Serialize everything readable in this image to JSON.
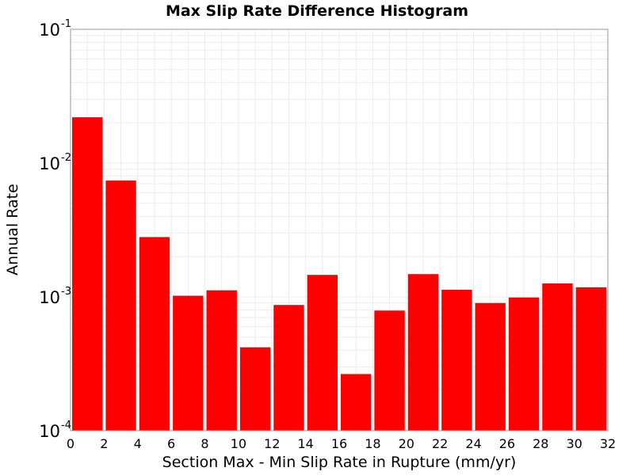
{
  "chart_data": {
    "type": "bar",
    "title": "Max Slip Rate Difference Histogram",
    "xlabel": "Section Max - Min Slip Rate in Rupture (mm/yr)",
    "ylabel": "Annual Rate",
    "y_scale": "log",
    "xlim": [
      0,
      32
    ],
    "ylim": [
      0.0001,
      0.1
    ],
    "x_ticks": [
      "0",
      "2",
      "4",
      "6",
      "8",
      "10",
      "12",
      "14",
      "16",
      "18",
      "20",
      "22",
      "24",
      "26",
      "28",
      "30",
      "32"
    ],
    "y_ticks": [
      {
        "base": "10",
        "exp": "-4"
      },
      {
        "base": "10",
        "exp": "-3"
      },
      {
        "base": "10",
        "exp": "-2"
      },
      {
        "base": "10",
        "exp": "-1"
      }
    ],
    "bin_width": 2,
    "grid": true,
    "bar_color": "#ff0000",
    "bins": [
      {
        "x_start": 0,
        "value": 0.022
      },
      {
        "x_start": 2,
        "value": 0.0074
      },
      {
        "x_start": 4,
        "value": 0.0028
      },
      {
        "x_start": 6,
        "value": 0.00102
      },
      {
        "x_start": 8,
        "value": 0.00112
      },
      {
        "x_start": 10,
        "value": 0.00042
      },
      {
        "x_start": 12,
        "value": 0.00087
      },
      {
        "x_start": 14,
        "value": 0.00146
      },
      {
        "x_start": 16,
        "value": 0.000265
      },
      {
        "x_start": 18,
        "value": 0.00079
      },
      {
        "x_start": 20,
        "value": 0.00148
      },
      {
        "x_start": 22,
        "value": 0.00113
      },
      {
        "x_start": 24,
        "value": 0.0009
      },
      {
        "x_start": 26,
        "value": 0.00099
      },
      {
        "x_start": 28,
        "value": 0.00126
      },
      {
        "x_start": 30,
        "value": 0.00118
      }
    ]
  }
}
